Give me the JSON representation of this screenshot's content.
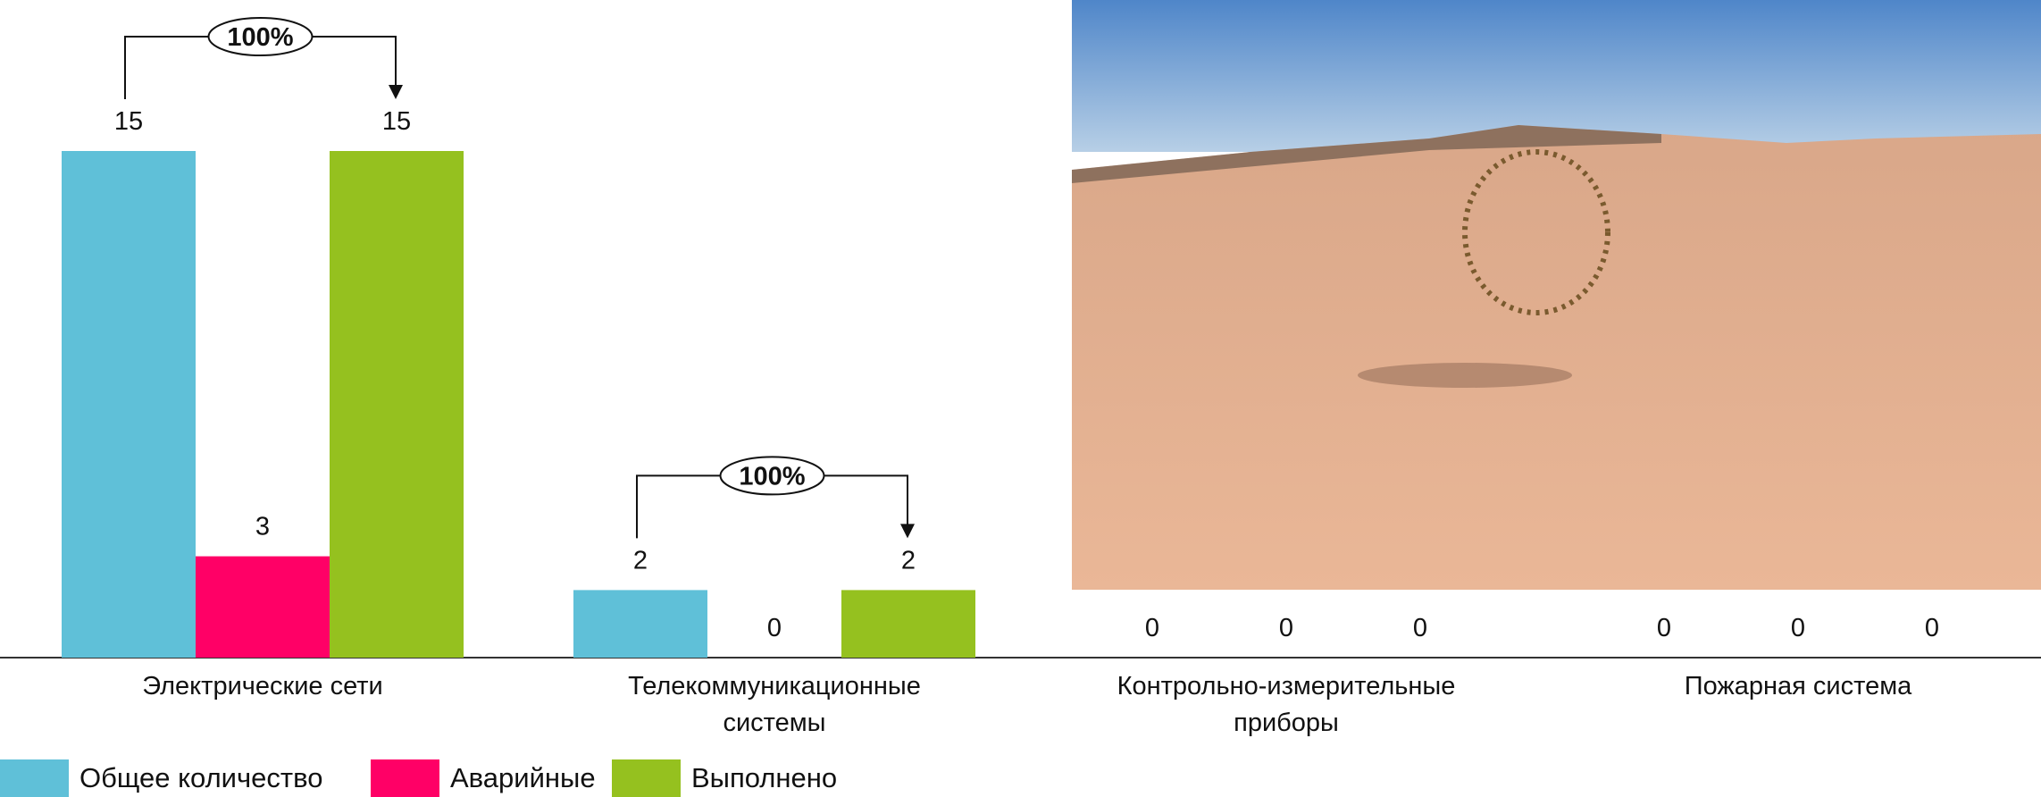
{
  "chart_data": {
    "type": "bar",
    "categories": [
      "Электрические сети",
      "Телекоммуникационные системы",
      "Контрольно-измерительные приборы",
      "Пожарная система"
    ],
    "series": [
      {
        "name": "Общее количество",
        "color": "#5fc0d8",
        "values": [
          15,
          2,
          0,
          0
        ]
      },
      {
        "name": "Аварийные",
        "color": "#ff0066",
        "values": [
          3,
          0,
          0,
          0
        ]
      },
      {
        "name": "Выполнено",
        "color": "#95c11f",
        "values": [
          15,
          2,
          0,
          0
        ]
      }
    ],
    "annotations": [
      {
        "text": "100%",
        "category": 0
      },
      {
        "text": "100%",
        "category": 1
      }
    ],
    "legend": "bottom-left"
  }
}
